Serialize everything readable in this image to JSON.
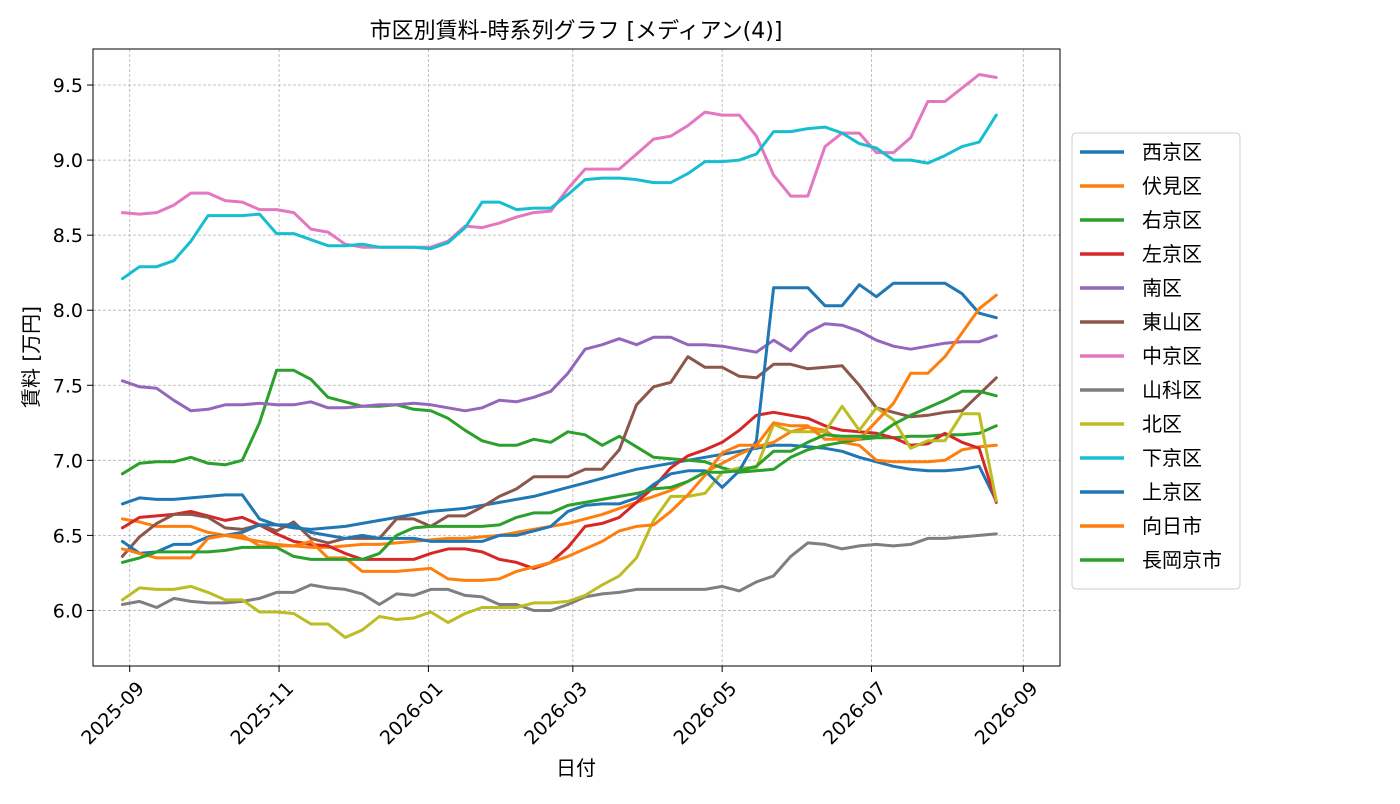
{
  "chart_data": {
    "type": "line",
    "title": "市区別賃料-時系列グラフ [メディアン(4)]",
    "xlabel": "日付",
    "ylabel": "賃料 [万円]",
    "xlim": [
      "2025-08-17",
      "2026-09-16"
    ],
    "ylim": [
      5.63,
      9.74
    ],
    "x_ticks": [
      "2025-09-01",
      "2025-11-01",
      "2026-01-01",
      "2026-03-01",
      "2026-05-01",
      "2026-07-01",
      "2026-09-01"
    ],
    "x_tick_labels": [
      "2025-09",
      "2025-11",
      "2026-01",
      "2026-03",
      "2026-05",
      "2026-07",
      "2026-09"
    ],
    "y_ticks": [
      6.0,
      6.5,
      7.0,
      7.5,
      8.0,
      8.5,
      9.0,
      9.5
    ],
    "y_tick_labels": [
      "6.0",
      "6.5",
      "7.0",
      "7.5",
      "8.0",
      "8.5",
      "9.0",
      "9.5"
    ],
    "grid": true,
    "legend_position": "right-outside",
    "x_dates": [
      "2025-08-29",
      "2025-09-05",
      "2025-09-12",
      "2025-09-19",
      "2025-09-26",
      "2025-10-03",
      "2025-10-10",
      "2025-10-17",
      "2025-10-24",
      "2025-10-31",
      "2025-11-07",
      "2025-11-14",
      "2025-11-21",
      "2025-11-28",
      "2025-12-05",
      "2025-12-12",
      "2025-12-19",
      "2025-12-26",
      "2026-01-02",
      "2026-01-09",
      "2026-01-16",
      "2026-01-23",
      "2026-01-30",
      "2026-02-06",
      "2026-02-13",
      "2026-02-20",
      "2026-02-27",
      "2026-03-06",
      "2026-03-13",
      "2026-03-20",
      "2026-03-27",
      "2026-04-03",
      "2026-04-10",
      "2026-04-17",
      "2026-04-24",
      "2026-05-01",
      "2026-05-08",
      "2026-05-15",
      "2026-05-22",
      "2026-05-29",
      "2026-06-05",
      "2026-06-12",
      "2026-06-19",
      "2026-06-26",
      "2026-07-03",
      "2026-07-10",
      "2026-07-17",
      "2026-07-24",
      "2026-07-31",
      "2026-08-07",
      "2026-08-14",
      "2026-08-21"
    ],
    "series": [
      {
        "name": "西京区",
        "color": "#1f77b4",
        "values": [
          6.71,
          6.75,
          6.74,
          6.74,
          6.75,
          6.76,
          6.77,
          6.77,
          6.61,
          6.57,
          6.55,
          6.54,
          6.55,
          6.56,
          6.58,
          6.6,
          6.62,
          6.64,
          6.66,
          6.67,
          6.68,
          6.7,
          6.72,
          6.74,
          6.76,
          6.79,
          6.82,
          6.85,
          6.88,
          6.91,
          6.94,
          6.96,
          6.98,
          7.0,
          7.02,
          7.04,
          7.06,
          7.08,
          7.1,
          7.1,
          7.09,
          7.08,
          7.06,
          7.02,
          6.99,
          6.96,
          6.94,
          6.93,
          6.93,
          6.94,
          6.96,
          6.73
        ]
      },
      {
        "name": "伏見区",
        "color": "#ff7f0e",
        "values": [
          6.61,
          6.59,
          6.56,
          6.56,
          6.56,
          6.52,
          6.5,
          6.48,
          6.46,
          6.44,
          6.43,
          6.42,
          6.42,
          6.43,
          6.44,
          6.44,
          6.45,
          6.46,
          6.47,
          6.48,
          6.48,
          6.49,
          6.5,
          6.52,
          6.54,
          6.56,
          6.58,
          6.61,
          6.64,
          6.68,
          6.72,
          6.76,
          6.8,
          6.86,
          6.92,
          6.98,
          7.04,
          7.09,
          7.12,
          7.19,
          7.22,
          7.2,
          7.12,
          7.1,
          7.0,
          6.99,
          6.99,
          6.99,
          7.0,
          7.07,
          7.09,
          7.1
        ]
      },
      {
        "name": "右京区",
        "color": "#2ca02c",
        "values": [
          6.91,
          6.98,
          6.99,
          6.99,
          7.02,
          6.98,
          6.97,
          7.0,
          7.25,
          7.6,
          7.6,
          7.54,
          7.42,
          7.39,
          7.36,
          7.36,
          7.37,
          7.34,
          7.33,
          7.28,
          7.2,
          7.13,
          7.1,
          7.1,
          7.14,
          7.12,
          7.19,
          7.17,
          7.1,
          7.16,
          7.09,
          7.02,
          7.01,
          7.0,
          6.99,
          6.95,
          6.92,
          6.93,
          6.94,
          7.02,
          7.07,
          7.1,
          7.12,
          7.14,
          7.15,
          7.15,
          7.16,
          7.16,
          7.17,
          7.17,
          7.18,
          7.23
        ]
      },
      {
        "name": "左京区",
        "color": "#d62728",
        "values": [
          6.55,
          6.62,
          6.63,
          6.64,
          6.66,
          6.63,
          6.6,
          6.62,
          6.57,
          6.51,
          6.46,
          6.44,
          6.43,
          6.38,
          6.34,
          6.34,
          6.34,
          6.34,
          6.38,
          6.41,
          6.41,
          6.39,
          6.34,
          6.32,
          6.28,
          6.32,
          6.42,
          6.56,
          6.58,
          6.62,
          6.72,
          6.82,
          6.95,
          7.03,
          7.07,
          7.12,
          7.2,
          7.3,
          7.32,
          7.3,
          7.28,
          7.23,
          7.2,
          7.19,
          7.18,
          7.15,
          7.1,
          7.11,
          7.18,
          7.12,
          7.08,
          6.72
        ]
      },
      {
        "name": "南区",
        "color": "#9467bd",
        "values": [
          7.53,
          7.49,
          7.48,
          7.4,
          7.33,
          7.34,
          7.37,
          7.37,
          7.38,
          7.37,
          7.37,
          7.39,
          7.35,
          7.35,
          7.36,
          7.37,
          7.37,
          7.38,
          7.37,
          7.35,
          7.33,
          7.35,
          7.4,
          7.39,
          7.42,
          7.46,
          7.58,
          7.74,
          7.77,
          7.81,
          7.77,
          7.82,
          7.82,
          7.77,
          7.77,
          7.76,
          7.74,
          7.72,
          7.8,
          7.73,
          7.85,
          7.91,
          7.9,
          7.86,
          7.8,
          7.76,
          7.74,
          7.76,
          7.78,
          7.79,
          7.79,
          7.83
        ]
      },
      {
        "name": "東山区",
        "color": "#8c564b",
        "values": [
          6.36,
          6.49,
          6.58,
          6.64,
          6.64,
          6.62,
          6.55,
          6.54,
          6.57,
          6.53,
          6.59,
          6.48,
          6.45,
          6.48,
          6.48,
          6.48,
          6.61,
          6.61,
          6.56,
          6.63,
          6.63,
          6.69,
          6.76,
          6.81,
          6.89,
          6.89,
          6.89,
          6.94,
          6.94,
          7.07,
          7.37,
          7.49,
          7.52,
          7.69,
          7.62,
          7.62,
          7.56,
          7.55,
          7.64,
          7.64,
          7.61,
          7.62,
          7.63,
          7.5,
          7.35,
          7.32,
          7.29,
          7.3,
          7.32,
          7.33,
          7.44,
          7.55
        ]
      },
      {
        "name": "中京区",
        "color": "#e377c2",
        "values": [
          8.65,
          8.64,
          8.65,
          8.7,
          8.78,
          8.78,
          8.73,
          8.72,
          8.67,
          8.67,
          8.65,
          8.54,
          8.52,
          8.44,
          8.42,
          8.42,
          8.42,
          8.42,
          8.42,
          8.46,
          8.56,
          8.55,
          8.58,
          8.62,
          8.65,
          8.66,
          8.81,
          8.94,
          8.94,
          8.94,
          9.04,
          9.14,
          9.16,
          9.23,
          9.32,
          9.3,
          9.3,
          9.16,
          8.9,
          8.76,
          8.76,
          9.09,
          9.18,
          9.18,
          9.05,
          9.05,
          9.15,
          9.39,
          9.39,
          9.48,
          9.57,
          9.55
        ]
      },
      {
        "name": "山科区",
        "color": "#7f7f7f",
        "values": [
          6.04,
          6.06,
          6.02,
          6.08,
          6.06,
          6.05,
          6.05,
          6.06,
          6.08,
          6.12,
          6.12,
          6.17,
          6.15,
          6.14,
          6.11,
          6.04,
          6.11,
          6.1,
          6.14,
          6.14,
          6.1,
          6.09,
          6.04,
          6.04,
          6.0,
          6.0,
          6.04,
          6.09,
          6.11,
          6.12,
          6.14,
          6.14,
          6.14,
          6.14,
          6.14,
          6.16,
          6.13,
          6.19,
          6.23,
          6.36,
          6.45,
          6.44,
          6.41,
          6.43,
          6.44,
          6.43,
          6.44,
          6.48,
          6.48,
          6.49,
          6.5,
          6.51
        ]
      },
      {
        "name": "北区",
        "color": "#bcbd22",
        "values": [
          6.07,
          6.15,
          6.14,
          6.14,
          6.16,
          6.12,
          6.07,
          6.07,
          5.99,
          5.99,
          5.98,
          5.91,
          5.91,
          5.82,
          5.87,
          5.96,
          5.94,
          5.95,
          5.99,
          5.92,
          5.98,
          6.02,
          6.02,
          6.02,
          6.05,
          6.05,
          6.06,
          6.1,
          6.17,
          6.23,
          6.35,
          6.6,
          6.76,
          6.76,
          6.78,
          6.92,
          6.95,
          6.95,
          7.24,
          7.19,
          7.19,
          7.19,
          7.36,
          7.2,
          7.35,
          7.27,
          7.08,
          7.13,
          7.13,
          7.31,
          7.31,
          6.73
        ]
      },
      {
        "name": "下京区",
        "color": "#17becf",
        "values": [
          8.21,
          8.29,
          8.29,
          8.33,
          8.46,
          8.63,
          8.63,
          8.63,
          8.64,
          8.51,
          8.51,
          8.47,
          8.43,
          8.43,
          8.44,
          8.42,
          8.42,
          8.42,
          8.41,
          8.45,
          8.55,
          8.72,
          8.72,
          8.67,
          8.68,
          8.68,
          8.77,
          8.87,
          8.88,
          8.88,
          8.87,
          8.85,
          8.85,
          8.91,
          8.99,
          8.99,
          9.0,
          9.04,
          9.19,
          9.19,
          9.21,
          9.22,
          9.18,
          9.11,
          9.08,
          9.0,
          9.0,
          8.98,
          9.03,
          9.09,
          9.12,
          9.3
        ]
      },
      {
        "name": "上京区",
        "color": "#1f77b4",
        "values": [
          6.46,
          6.38,
          6.39,
          6.44,
          6.44,
          6.49,
          6.5,
          6.52,
          6.57,
          6.57,
          6.57,
          6.52,
          6.5,
          6.48,
          6.5,
          6.48,
          6.48,
          6.48,
          6.46,
          6.46,
          6.46,
          6.46,
          6.5,
          6.5,
          6.53,
          6.56,
          6.66,
          6.7,
          6.71,
          6.71,
          6.75,
          6.84,
          6.91,
          6.93,
          6.93,
          6.82,
          6.93,
          7.13,
          8.15,
          8.15,
          8.15,
          8.03,
          8.03,
          8.17,
          8.09,
          8.18,
          8.18,
          8.18,
          8.18,
          8.11,
          7.98,
          7.95
        ]
      },
      {
        "name": "向日市",
        "color": "#ff7f0e",
        "values": [
          6.41,
          6.38,
          6.35,
          6.35,
          6.35,
          6.48,
          6.5,
          6.5,
          6.43,
          6.43,
          6.43,
          6.46,
          6.35,
          6.35,
          6.26,
          6.26,
          6.26,
          6.27,
          6.28,
          6.21,
          6.2,
          6.2,
          6.21,
          6.26,
          6.29,
          6.32,
          6.36,
          6.41,
          6.46,
          6.53,
          6.56,
          6.57,
          6.66,
          6.77,
          6.9,
          7.05,
          7.1,
          7.1,
          7.25,
          7.23,
          7.23,
          7.14,
          7.14,
          7.14,
          7.26,
          7.38,
          7.58,
          7.58,
          7.69,
          7.85,
          8.01,
          8.1
        ]
      },
      {
        "name": "長岡京市",
        "color": "#2ca02c",
        "values": [
          6.32,
          6.35,
          6.39,
          6.39,
          6.39,
          6.39,
          6.4,
          6.42,
          6.42,
          6.42,
          6.36,
          6.34,
          6.34,
          6.34,
          6.34,
          6.38,
          6.5,
          6.55,
          6.56,
          6.56,
          6.56,
          6.56,
          6.57,
          6.62,
          6.65,
          6.65,
          6.7,
          6.72,
          6.74,
          6.76,
          6.78,
          6.81,
          6.82,
          6.86,
          6.92,
          6.92,
          6.93,
          6.96,
          7.06,
          7.06,
          7.12,
          7.17,
          7.16,
          7.16,
          7.16,
          7.24,
          7.3,
          7.35,
          7.4,
          7.46,
          7.46,
          7.43
        ]
      }
    ]
  }
}
